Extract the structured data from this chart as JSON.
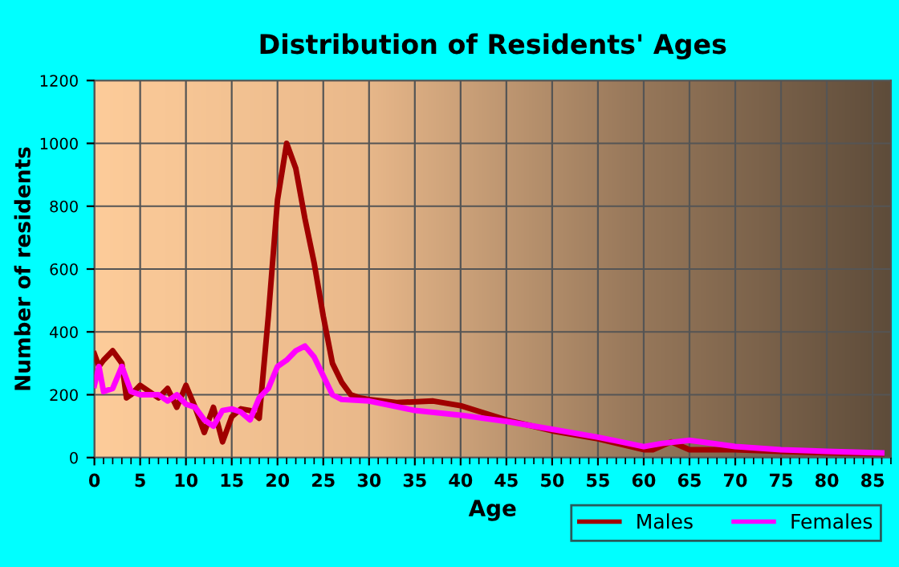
{
  "chart_data": {
    "type": "line",
    "title": "Distribution of Residents' Ages",
    "xlabel": "Age",
    "ylabel": "Number of residents",
    "xlim": [
      0,
      87
    ],
    "xticks": [
      0,
      5,
      10,
      15,
      20,
      25,
      30,
      35,
      40,
      45,
      50,
      55,
      60,
      65,
      70,
      75,
      80,
      85
    ],
    "ylim": [
      0,
      1200
    ],
    "yticks": [
      0,
      200,
      400,
      600,
      800,
      1000,
      1200
    ],
    "grid": true,
    "legend": "bottom right",
    "line_style": "solid",
    "marker": "none",
    "series": [
      {
        "name": "Males",
        "color": "#a00000",
        "x": [
          0,
          0.5,
          1,
          2,
          3,
          3.5,
          4,
          5,
          6,
          7,
          8,
          9,
          10,
          11,
          12,
          13,
          14,
          15,
          16,
          17,
          18,
          19,
          20,
          21,
          22,
          23,
          24,
          25,
          26,
          27,
          28,
          29,
          30,
          33,
          37,
          40,
          45,
          50,
          55,
          60,
          61,
          63,
          65,
          70,
          75,
          80,
          86
        ],
        "values": [
          330,
          290,
          310,
          340,
          300,
          190,
          200,
          230,
          210,
          190,
          220,
          160,
          230,
          160,
          80,
          160,
          50,
          130,
          155,
          150,
          125,
          450,
          820,
          1000,
          920,
          760,
          620,
          450,
          300,
          240,
          200,
          190,
          185,
          175,
          180,
          165,
          120,
          85,
          60,
          25,
          25,
          50,
          25,
          25,
          20,
          15,
          12
        ]
      },
      {
        "name": "Females",
        "color": "#ff00ff",
        "x": [
          0,
          0.5,
          1,
          2,
          3,
          4,
          5,
          7,
          8,
          9,
          10,
          11,
          12,
          13,
          14,
          15,
          16,
          17,
          18,
          19,
          20,
          21,
          22,
          23,
          24,
          25,
          26,
          27,
          30,
          35,
          40,
          45,
          50,
          55,
          60,
          62,
          65,
          70,
          75,
          80,
          86
        ],
        "values": [
          230,
          290,
          210,
          220,
          290,
          210,
          200,
          200,
          180,
          200,
          170,
          160,
          120,
          100,
          150,
          155,
          145,
          120,
          190,
          220,
          290,
          310,
          340,
          355,
          320,
          260,
          200,
          185,
          180,
          150,
          135,
          115,
          90,
          65,
          35,
          45,
          55,
          35,
          25,
          20,
          15
        ]
      }
    ]
  }
}
